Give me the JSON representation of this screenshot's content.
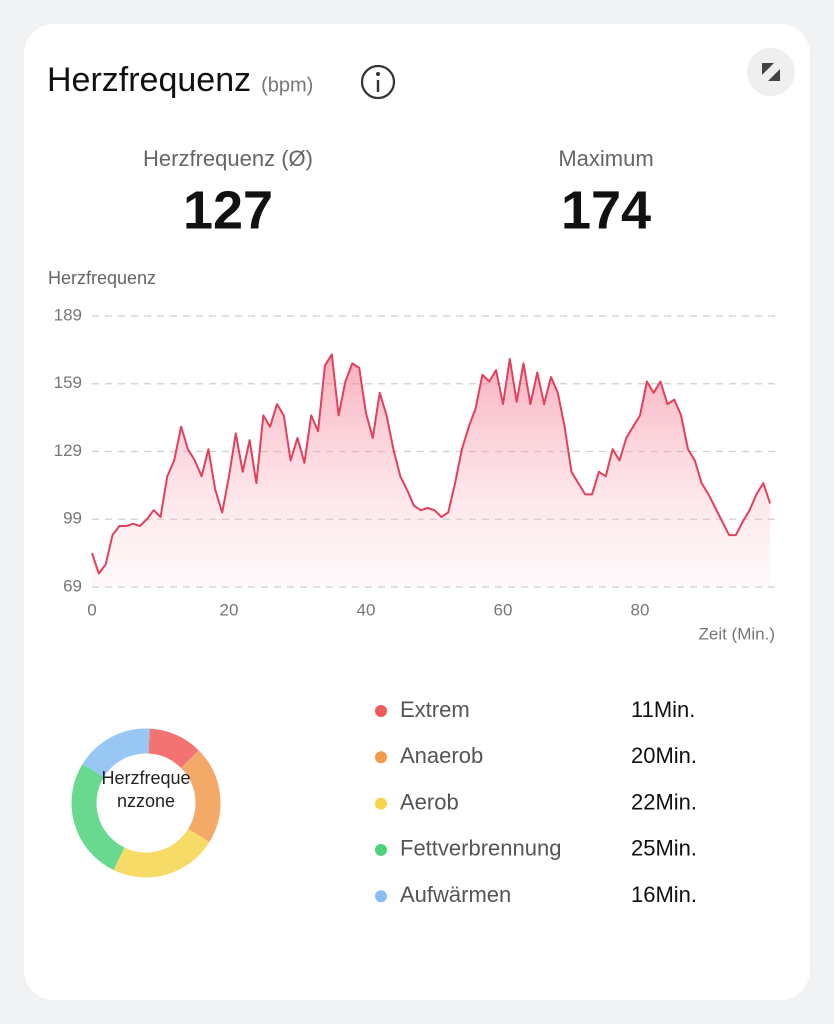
{
  "header": {
    "title": "Herzfrequenz",
    "unit": "(bpm)"
  },
  "stats": [
    {
      "label": "Herzfrequenz (Ø)",
      "value": 127
    },
    {
      "label": "Maximum",
      "value": 174
    }
  ],
  "chart_data": [
    {
      "type": "area",
      "y_label": "Herzfrequenz",
      "x_label": "Zeit (Min.)",
      "color": "#e2405c",
      "grid": true,
      "xlim": [
        0,
        100
      ],
      "xticks": [
        0,
        20,
        40,
        60,
        80
      ],
      "ylim": [
        69,
        189
      ],
      "yticks": [
        69,
        99,
        129,
        159,
        189
      ],
      "x": [
        0,
        1,
        2,
        3,
        4,
        5,
        6,
        7,
        8,
        9,
        10,
        11,
        12,
        13,
        14,
        15,
        16,
        17,
        18,
        19,
        20,
        21,
        22,
        23,
        24,
        25,
        26,
        27,
        28,
        29,
        30,
        31,
        32,
        33,
        34,
        35,
        36,
        37,
        38,
        39,
        40,
        41,
        42,
        43,
        44,
        45,
        46,
        47,
        48,
        49,
        50,
        51,
        52,
        53,
        54,
        55,
        56,
        57,
        58,
        59,
        60,
        61,
        62,
        63,
        64,
        65,
        66,
        67,
        68,
        69,
        70,
        71,
        72,
        73,
        74,
        75,
        76,
        77,
        78,
        79,
        80,
        81,
        82,
        83,
        84,
        85,
        86,
        87,
        88,
        89,
        90,
        91,
        92,
        93,
        94,
        95,
        96,
        97,
        98,
        99
      ],
      "values": [
        84,
        75,
        79,
        92,
        96,
        96,
        97,
        96,
        99,
        103,
        100,
        118,
        125,
        140,
        130,
        125,
        118,
        130,
        112,
        102,
        118,
        137,
        120,
        134,
        115,
        145,
        140,
        150,
        145,
        125,
        135,
        124,
        145,
        138,
        167,
        172,
        145,
        160,
        168,
        166,
        146,
        135,
        155,
        145,
        130,
        118,
        112,
        105,
        103,
        104,
        103,
        100,
        102,
        115,
        130,
        140,
        148,
        163,
        160,
        165,
        150,
        170,
        151,
        168,
        150,
        164,
        150,
        162,
        155,
        140,
        120,
        115,
        110,
        110,
        120,
        118,
        130,
        125,
        135,
        140,
        145,
        160,
        155,
        160,
        150,
        152,
        145,
        130,
        125,
        115,
        110,
        104,
        98,
        92,
        92,
        98,
        103,
        110,
        115,
        106
      ]
    },
    {
      "type": "donut",
      "center_label": "Herzfrequenzzone",
      "categories": [
        "Extrem",
        "Anaerob",
        "Aerob",
        "Fettverbrennung",
        "Aufwärmen"
      ],
      "values": [
        11,
        20,
        22,
        25,
        16
      ],
      "value_labels": [
        "11Min.",
        "20Min.",
        "22Min.",
        "25Min.",
        "16Min."
      ],
      "colors": [
        "#f15a5a",
        "#f19a4e",
        "#f6d54c",
        "#4fd27c",
        "#86bdf2"
      ]
    }
  ]
}
